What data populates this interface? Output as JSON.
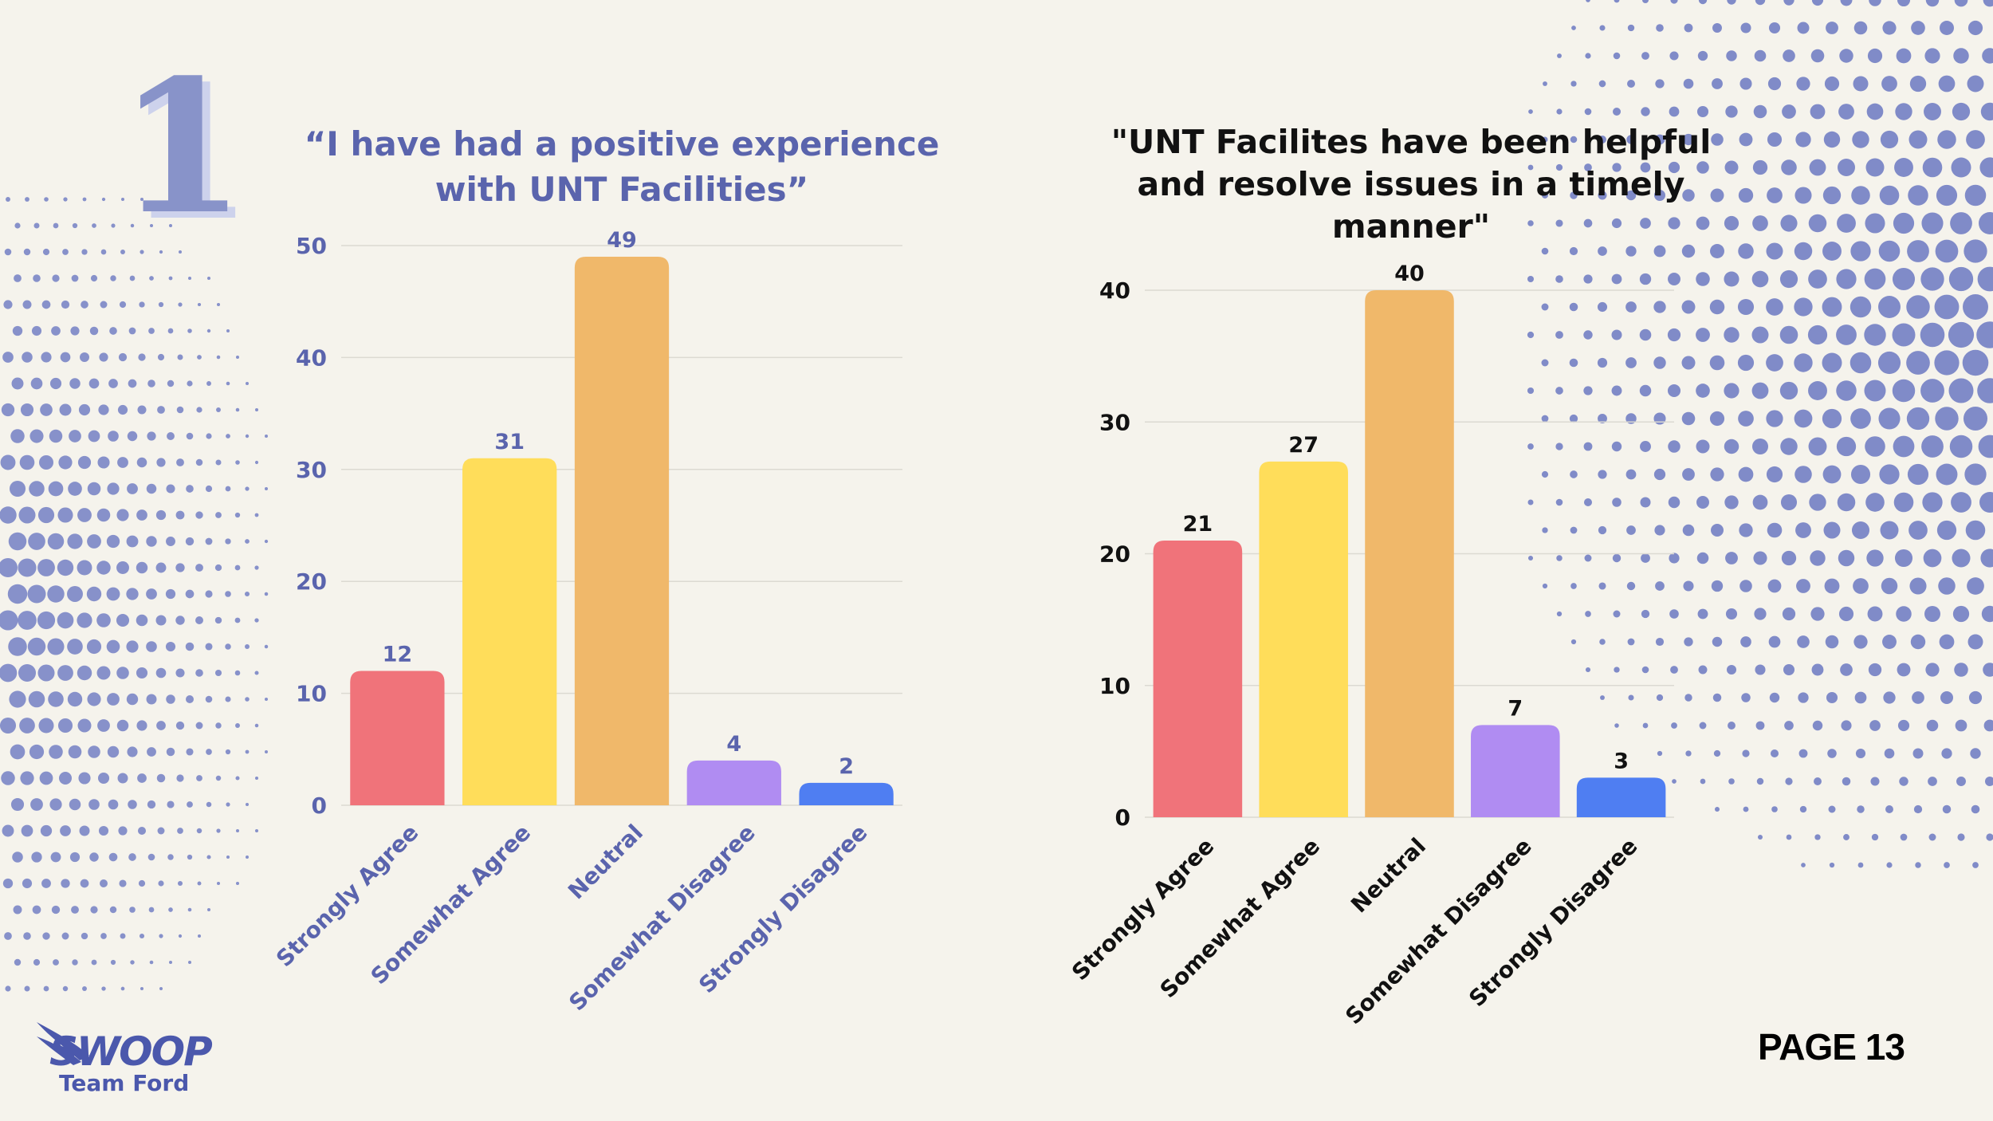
{
  "slide": {
    "number": "1",
    "page_label": "PAGE 13",
    "logo": {
      "word": "SWOOP",
      "subtitle": "Team Ford"
    }
  },
  "colors": {
    "background": "#f5f3ec",
    "dots": "#6b78c2",
    "bars": [
      "#f0737a",
      "#ffdd5a",
      "#f0b86a",
      "#b08cf2",
      "#4f7ef2"
    ],
    "chart1_text": "#5a64ad",
    "chart2_text": "#111111"
  },
  "chart_data": [
    {
      "type": "bar",
      "title": "“I have had a positive experience with UNT Facilities”",
      "categories": [
        "Strongly Agree",
        "Somewhat Agree",
        "Neutral",
        "Somewhat Disagree",
        "Strongly Disagree"
      ],
      "values": [
        12,
        31,
        49,
        4,
        2
      ],
      "ylim": [
        0,
        50
      ],
      "yticks": [
        0,
        10,
        20,
        30,
        40,
        50
      ],
      "grid": true,
      "data_labels": true
    },
    {
      "type": "bar",
      "title": "\"UNT Facilites have been helpful and resolve issues in a timely manner\"",
      "categories": [
        "Strongly Agree",
        "Somewhat Agree",
        "Neutral",
        "Somewhat Disagree",
        "Strongly Disagree"
      ],
      "values": [
        21,
        27,
        40,
        7,
        3
      ],
      "ylim": [
        0,
        40
      ],
      "yticks": [
        0,
        10,
        20,
        30,
        40
      ],
      "grid": true,
      "data_labels": true
    }
  ]
}
